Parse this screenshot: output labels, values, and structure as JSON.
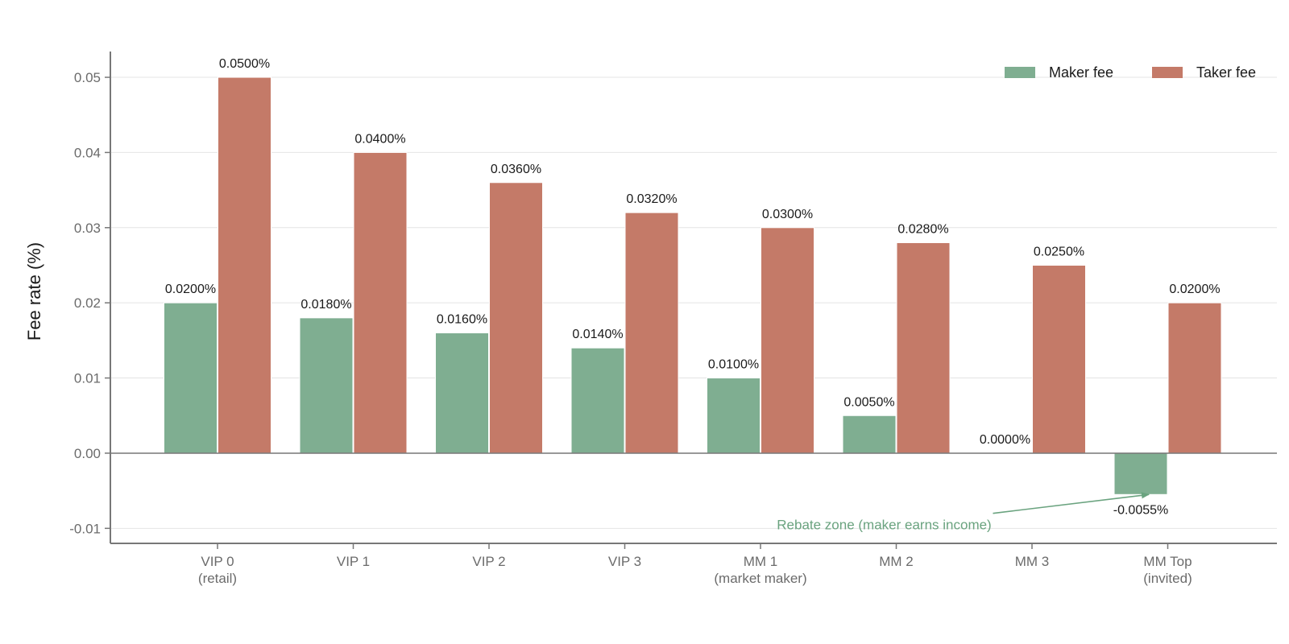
{
  "chart_data": {
    "type": "bar",
    "title": "",
    "xlabel": "",
    "ylabel": "Fee rate (%)",
    "categories": [
      [
        "VIP 0",
        "(retail)"
      ],
      [
        "VIP 1"
      ],
      [
        "VIP 2"
      ],
      [
        "VIP 3"
      ],
      [
        "MM 1",
        "(market maker)"
      ],
      [
        "MM 2"
      ],
      [
        "MM 3"
      ],
      [
        "MM Top",
        "(invited)"
      ]
    ],
    "series": [
      {
        "name": "Maker fee",
        "color": "#7fae91",
        "values": [
          0.02,
          0.018,
          0.016,
          0.014,
          0.01,
          0.005,
          0.0,
          -0.0055
        ],
        "labels": [
          "0.0200%",
          "0.0180%",
          "0.0160%",
          "0.0140%",
          "0.0100%",
          "0.0050%",
          "0.0000%",
          "-0.0055%"
        ]
      },
      {
        "name": "Taker fee",
        "color": "#c47a68",
        "values": [
          0.05,
          0.04,
          0.036,
          0.032,
          0.03,
          0.028,
          0.025,
          0.02
        ],
        "labels": [
          "0.0500%",
          "0.0400%",
          "0.0360%",
          "0.0320%",
          "0.0300%",
          "0.0280%",
          "0.0250%",
          "0.0200%"
        ]
      }
    ],
    "ylim": [
      -0.012,
      0.056
    ],
    "yticks": [
      -0.01,
      0.0,
      0.01,
      0.02,
      0.03,
      0.04,
      0.05
    ],
    "ytick_labels": [
      "-0.01",
      "0.00",
      "0.01",
      "0.02",
      "0.03",
      "0.04",
      "0.05"
    ],
    "grid": "horizontal",
    "legend_position": "top-right",
    "annotation": {
      "text": "Rebate zone (maker earns income)",
      "color": "#6aa37f",
      "target_category": 7,
      "target_series": 0,
      "text_x_category": 5,
      "text_y": -0.0095,
      "arrow_from_y": -0.008
    }
  }
}
